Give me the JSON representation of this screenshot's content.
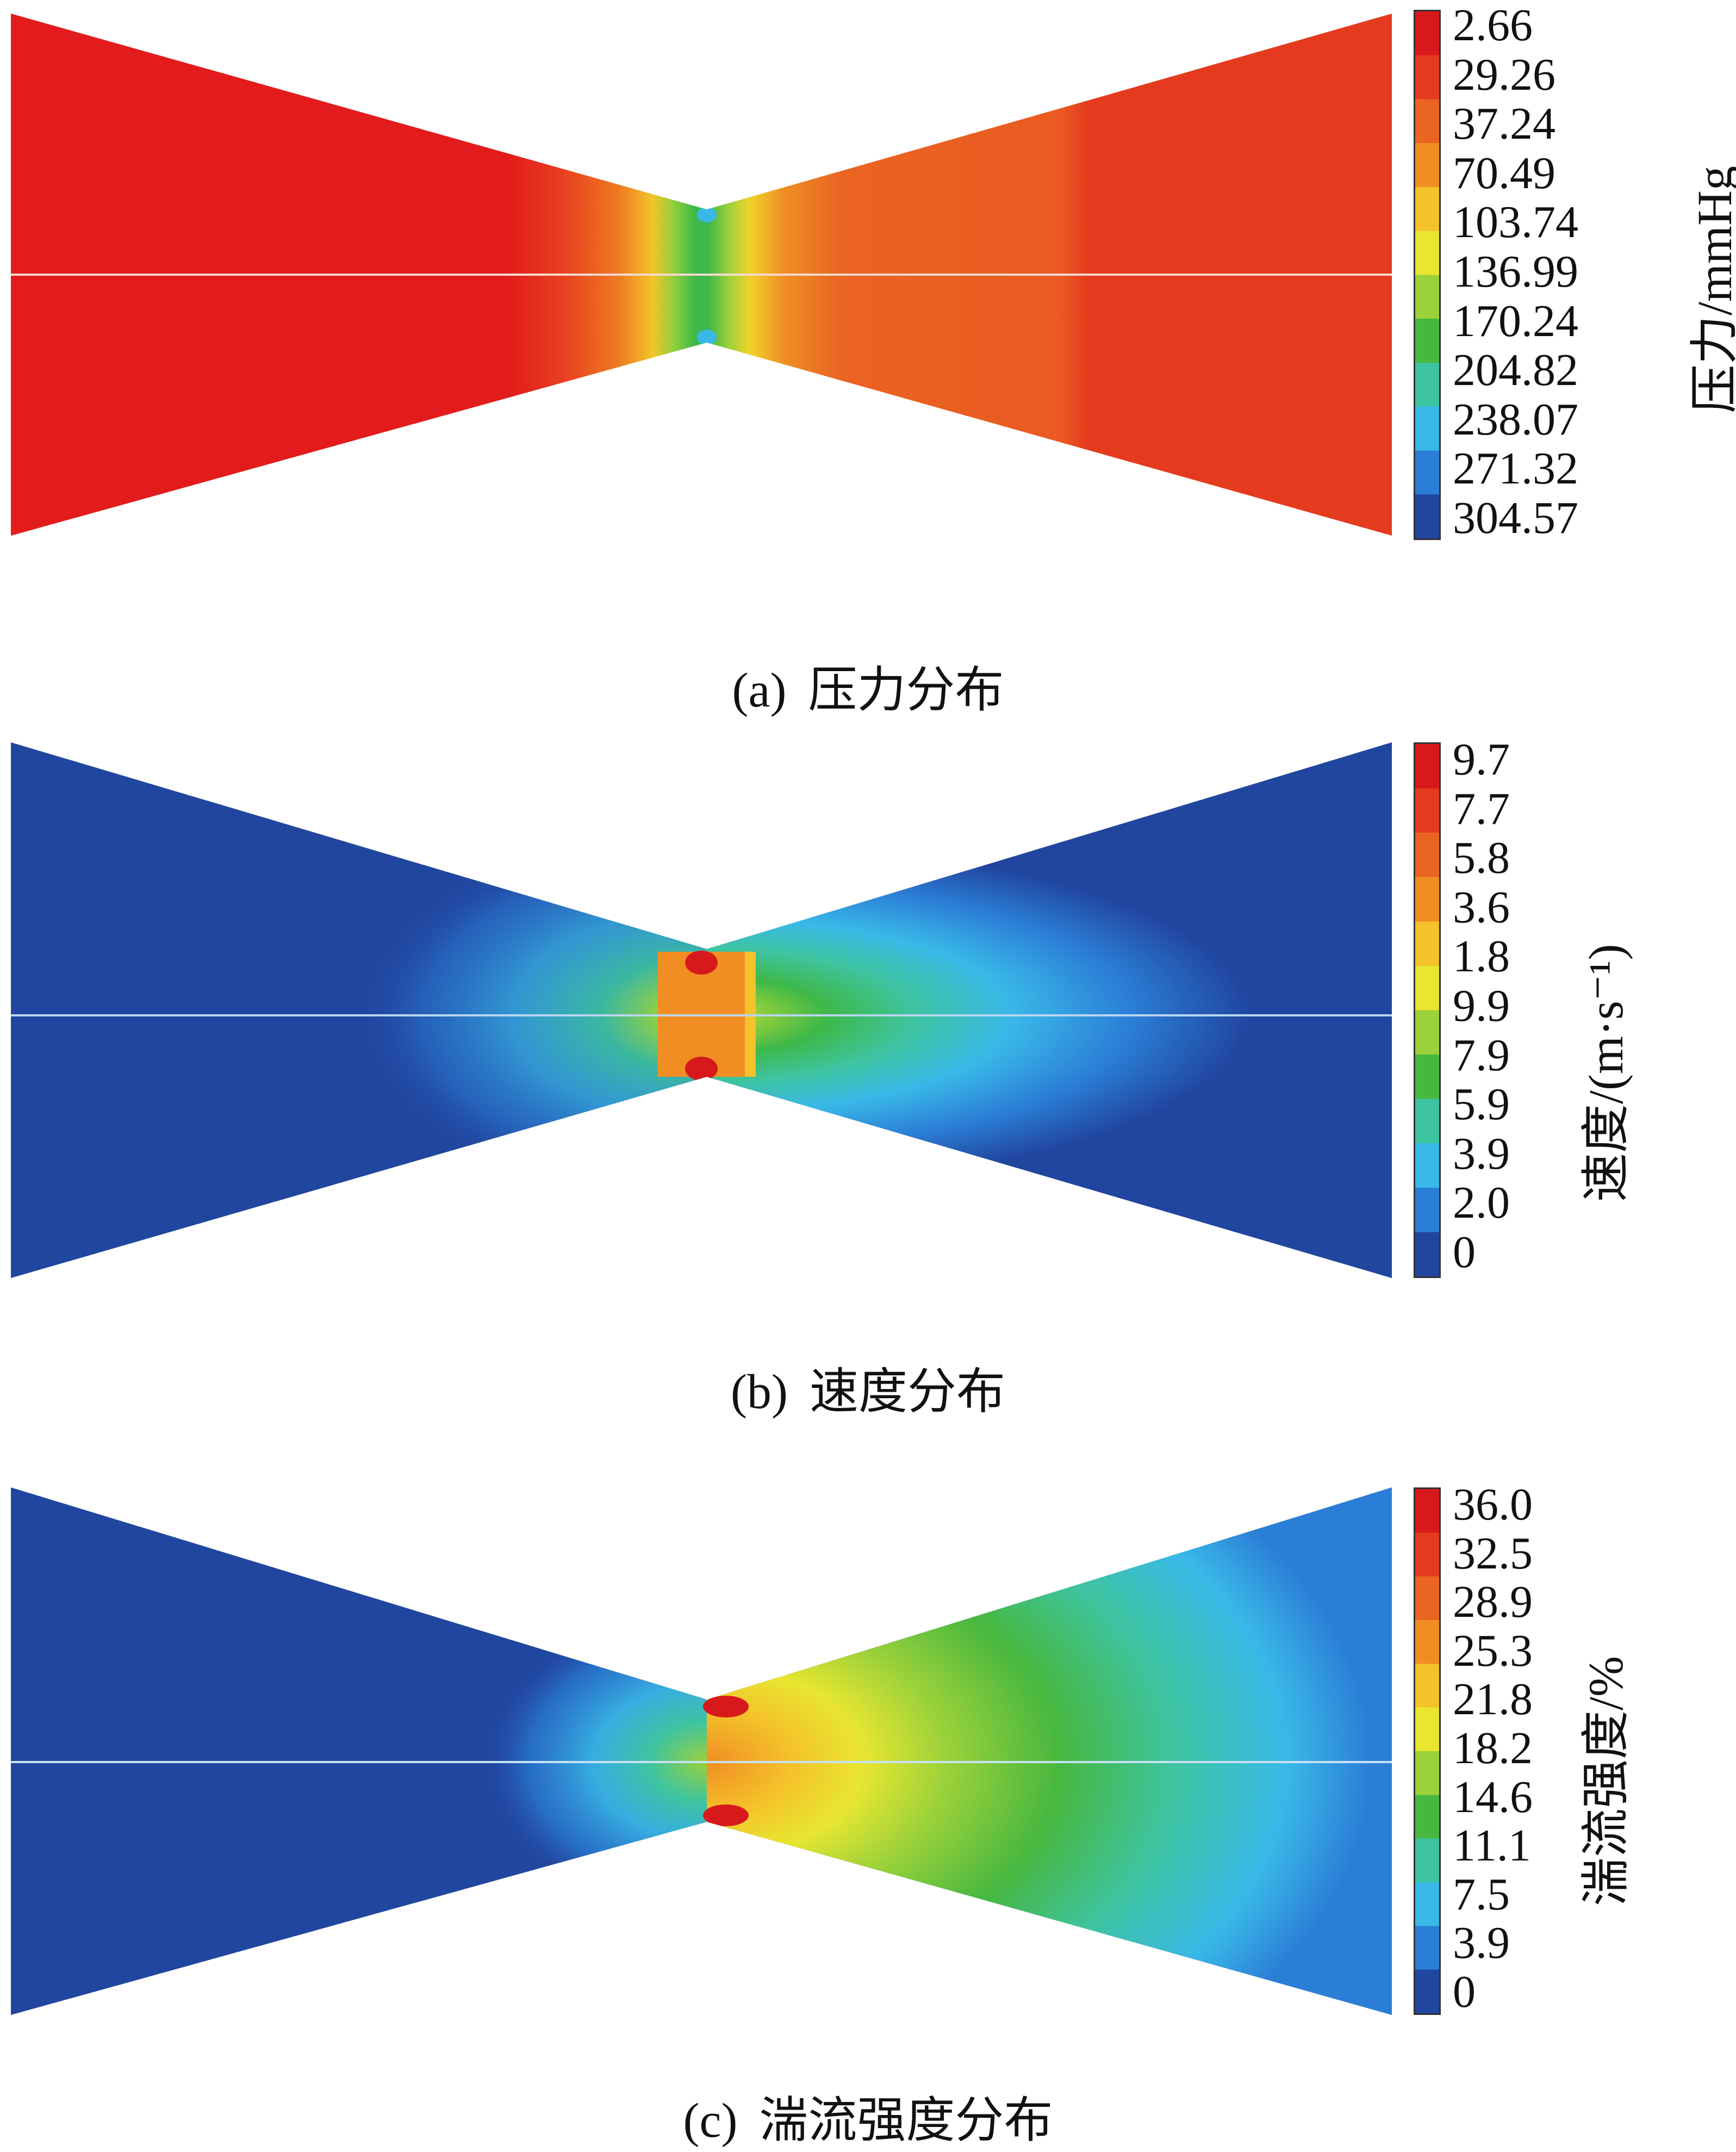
{
  "panels": {
    "pressure": {
      "caption_tag": "(a)",
      "caption_text": "压力分布",
      "unit_label": "压力/mmHg",
      "ticks": [
        "2.66",
        "29.26",
        "37.24",
        "70.49",
        "103.74",
        "136.99",
        "170.24",
        "204.82",
        "238.07",
        "271.32",
        "304.57"
      ],
      "colorbar_colors": [
        "#d7191c",
        "#e43b1e",
        "#ea6422",
        "#f08e24",
        "#f4c22a",
        "#e8e631",
        "#9bd13a",
        "#47b740",
        "#3ec4a0",
        "#39b8e8",
        "#2b7ed6",
        "#21469f"
      ]
    },
    "velocity": {
      "caption_tag": "(b)",
      "caption_text": "速度分布",
      "unit_label": "速度/(m·s⁻¹)",
      "ticks": [
        "9.7",
        "7.7",
        "5.8",
        "3.6",
        "1.8",
        "9.9",
        "7.9",
        "5.9",
        "3.9",
        "2.0",
        "0"
      ],
      "colorbar_colors": [
        "#d7191c",
        "#e43b1e",
        "#ea6422",
        "#f08e24",
        "#f4c22a",
        "#e8e631",
        "#9bd13a",
        "#47b740",
        "#3ec4a0",
        "#39b8e8",
        "#2b7ed6",
        "#21469f"
      ]
    },
    "turbulence": {
      "caption_tag": "(c)",
      "caption_text": "湍流强度分布",
      "unit_label": "湍流强度/%",
      "ticks": [
        "36.0",
        "32.5",
        "28.9",
        "25.3",
        "21.8",
        "18.2",
        "14.6",
        "11.1",
        "7.5",
        "3.9",
        "0"
      ],
      "colorbar_colors": [
        "#d7191c",
        "#e43b1e",
        "#ea6422",
        "#f08e24",
        "#f4c22a",
        "#e8e631",
        "#9bd13a",
        "#47b740",
        "#3ec4a0",
        "#39b8e8",
        "#2b7ed6",
        "#21469f"
      ]
    }
  }
}
